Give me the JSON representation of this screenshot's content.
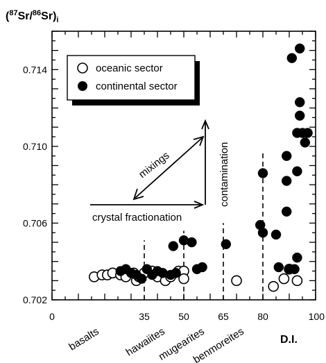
{
  "chart_data": {
    "type": "scatter",
    "title": {
      "open": "(",
      "sup1": "87",
      "mid1": "Sr/",
      "sup2": "86",
      "mid2": "Sr)",
      "sub": "i"
    },
    "xlabel": "D.I.",
    "xlim": [
      0,
      100
    ],
    "ylim": [
      0.702,
      0.716
    ],
    "x_ticks": [
      "0",
      "35",
      "50",
      "65",
      "80",
      "100"
    ],
    "x_tick_values": [
      0,
      35,
      50,
      65,
      80,
      100
    ],
    "y_ticks": [
      "0.702",
      "0.706",
      "0.710",
      "0.714"
    ],
    "y_tick_values": [
      0.702,
      0.706,
      0.71,
      0.714
    ],
    "rock_types": [
      {
        "label": "basalts",
        "x": 17
      },
      {
        "label": "hawaiites",
        "x": 42
      },
      {
        "label": "mugearites",
        "x": 57
      },
      {
        "label": "benmoreites",
        "x": 72
      }
    ],
    "boundaries": [
      {
        "x": 35,
        "y_top": 0.7051
      },
      {
        "x": 50,
        "y_top": 0.7056
      },
      {
        "x": 65,
        "y_top": 0.706
      },
      {
        "x": 80,
        "y_top": 0.7097
      }
    ],
    "series": [
      {
        "name": "oceanic sector",
        "marker": "open-circle",
        "points": [
          [
            16,
            0.7032
          ],
          [
            19,
            0.7033
          ],
          [
            21,
            0.7033
          ],
          [
            23,
            0.7034
          ],
          [
            26,
            0.7033
          ],
          [
            28,
            0.7032
          ],
          [
            31,
            0.7034
          ],
          [
            32,
            0.703
          ],
          [
            33,
            0.7032
          ],
          [
            35,
            0.7034
          ],
          [
            38,
            0.7035
          ],
          [
            40,
            0.7032
          ],
          [
            43,
            0.703
          ],
          [
            45,
            0.7032
          ],
          [
            48,
            0.7035
          ],
          [
            50,
            0.7035
          ],
          [
            50,
            0.7031
          ],
          [
            70,
            0.703
          ],
          [
            84,
            0.7027
          ],
          [
            88,
            0.7031
          ],
          [
            90,
            0.7036
          ],
          [
            93,
            0.703
          ]
        ]
      },
      {
        "name": "continental sector",
        "marker": "filled-circle",
        "points": [
          [
            26,
            0.7035
          ],
          [
            28,
            0.7036
          ],
          [
            30,
            0.7034
          ],
          [
            32,
            0.7033
          ],
          [
            34,
            0.7031
          ],
          [
            36,
            0.7036
          ],
          [
            38,
            0.7033
          ],
          [
            40,
            0.7035
          ],
          [
            42,
            0.7034
          ],
          [
            45,
            0.7033
          ],
          [
            46,
            0.7048
          ],
          [
            47,
            0.7034
          ],
          [
            50,
            0.7051
          ],
          [
            53,
            0.705
          ],
          [
            55,
            0.7036
          ],
          [
            57,
            0.7037
          ],
          [
            66,
            0.7049
          ],
          [
            79,
            0.7059
          ],
          [
            80,
            0.7055
          ],
          [
            80,
            0.7086
          ],
          [
            85,
            0.7054
          ],
          [
            86,
            0.7037
          ],
          [
            89,
            0.7095
          ],
          [
            89,
            0.7082
          ],
          [
            89,
            0.7066
          ],
          [
            90,
            0.7036
          ],
          [
            91,
            0.7146
          ],
          [
            92,
            0.7036
          ],
          [
            93,
            0.7087
          ],
          [
            93,
            0.7107
          ],
          [
            93,
            0.7042
          ],
          [
            94,
            0.7151
          ],
          [
            94,
            0.7123
          ],
          [
            94,
            0.7116
          ],
          [
            95,
            0.7107
          ],
          [
            96,
            0.7102
          ],
          [
            97,
            0.7107
          ]
        ]
      }
    ],
    "annotations": [
      {
        "text": "crystal fractionation"
      },
      {
        "text": "mixings"
      },
      {
        "text": "contamination"
      }
    ],
    "legend_position": "top-left",
    "grid": false
  }
}
